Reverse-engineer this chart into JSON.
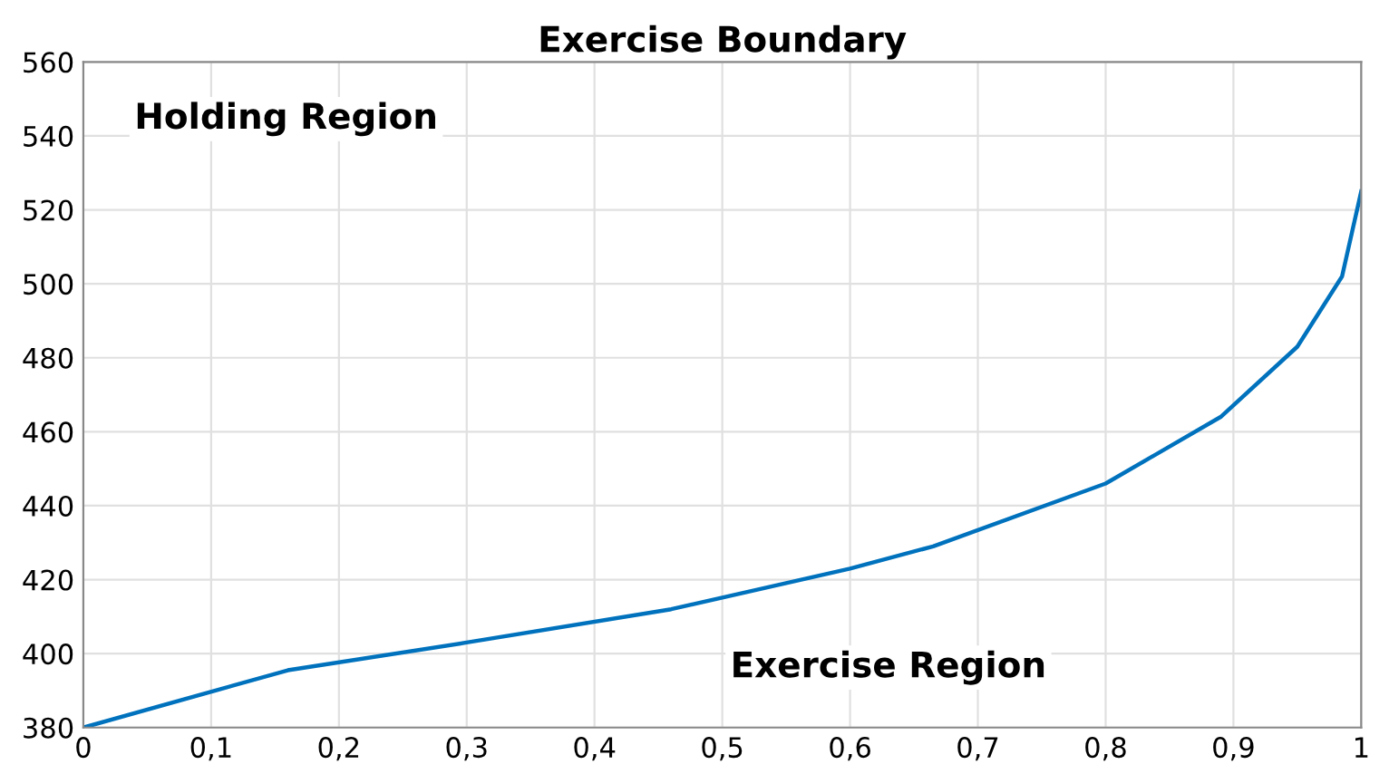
{
  "chart_data": {
    "type": "line",
    "title": "Exercise Boundary",
    "x": [
      0,
      0.16,
      0.3,
      0.46,
      0.6,
      0.665,
      0.8,
      0.89,
      0.95,
      0.985,
      1.0
    ],
    "series": [
      {
        "color": "#0072bd",
        "values": [
          380,
          395.5,
          403,
          412,
          423,
          429,
          446,
          464,
          483,
          502,
          525
        ]
      }
    ],
    "xlim": [
      0,
      1
    ],
    "ylim": [
      380,
      560
    ],
    "xticks": [
      0,
      {
        "value": 0.1,
        "label": "0,1"
      },
      {
        "value": 0.2,
        "label": "0,2"
      },
      {
        "value": 0.3,
        "label": "0,3"
      },
      {
        "value": 0.4,
        "label": "0,4"
      },
      {
        "value": 0.5,
        "label": "0,5"
      },
      {
        "value": 0.6,
        "label": "0,6"
      },
      {
        "value": 0.7,
        "label": "0,7"
      },
      {
        "value": 0.8,
        "label": "0,8"
      },
      {
        "value": 0.9,
        "label": "0,9"
      },
      1
    ],
    "yticks": [
      380,
      400,
      420,
      440,
      460,
      480,
      500,
      520,
      540,
      560
    ],
    "grid": true,
    "marker": "none",
    "line_style": "solid",
    "annotations": [
      "Holding Region",
      "Exercise Region"
    ]
  }
}
